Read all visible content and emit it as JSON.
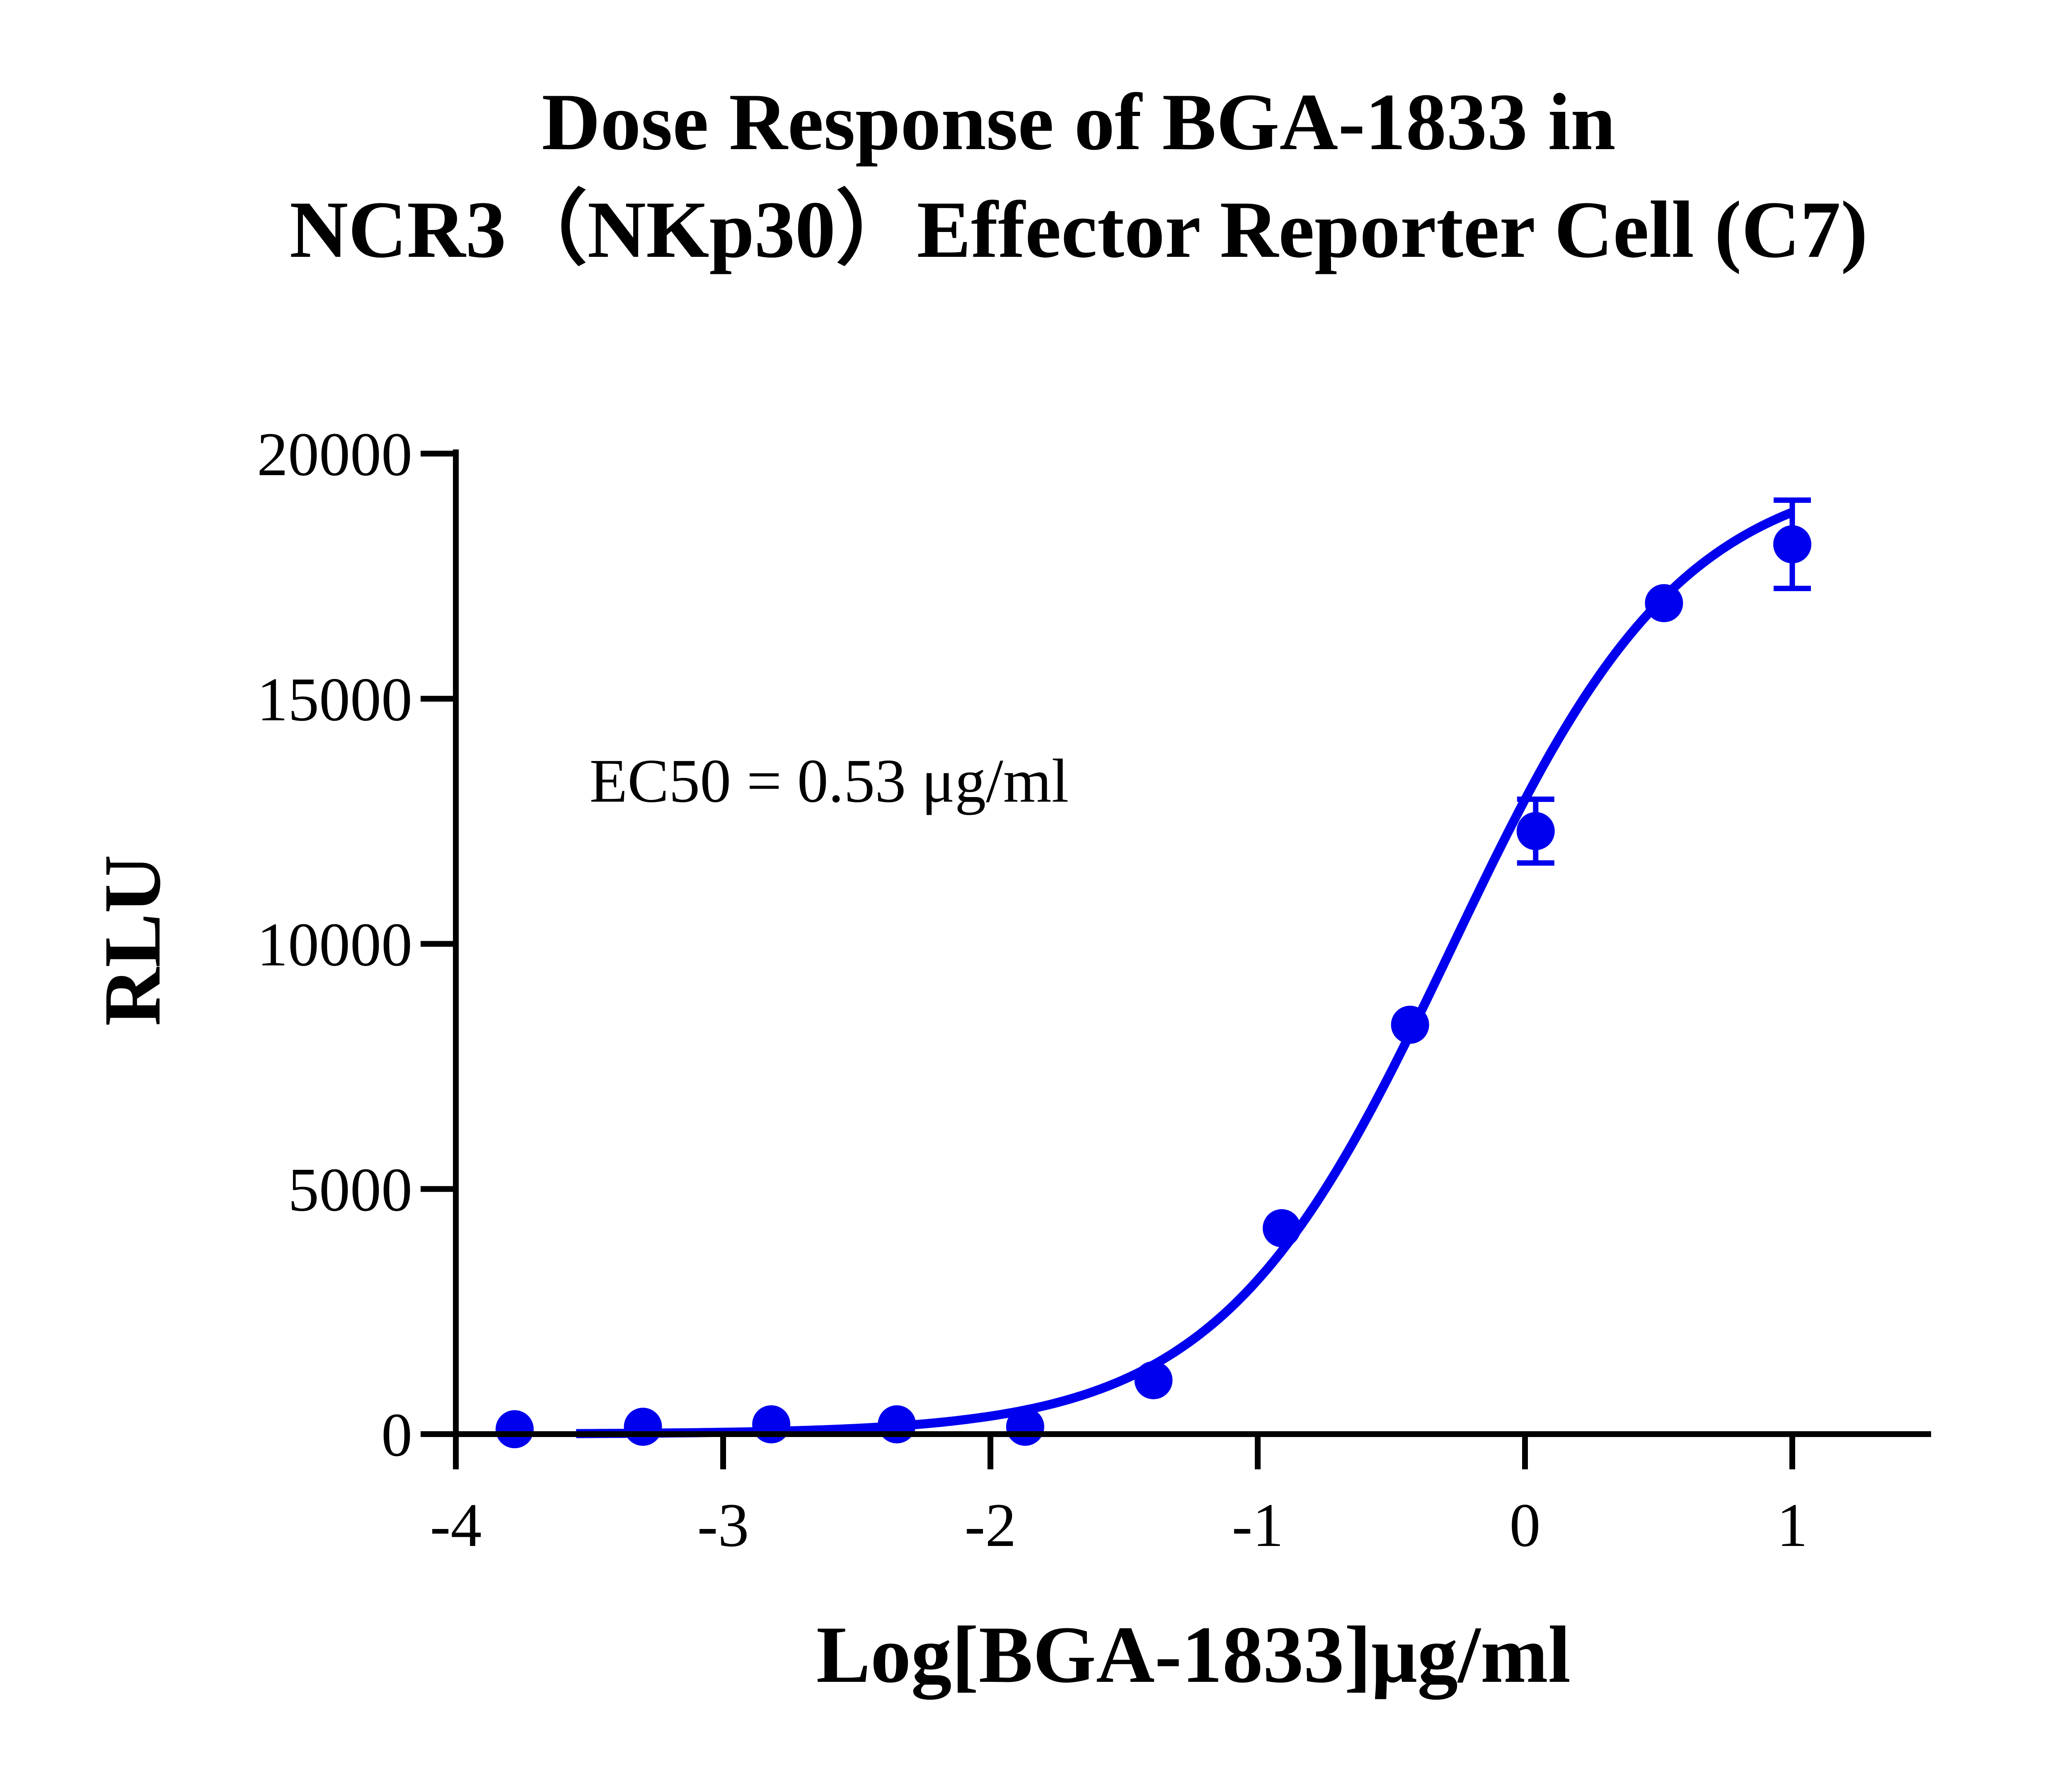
{
  "chart_data": {
    "type": "scatter",
    "title_lines": [
      "Dose Response of BGA-1833 in",
      "NCR3（NKp30）Effector Reporter Cell (C7)"
    ],
    "xlabel": "Log[BGA-1833]μg/ml",
    "ylabel": "RLU",
    "xlim": [
      -4,
      1.5
    ],
    "ylim": [
      0,
      20000
    ],
    "x_ticks": [
      -4,
      -3,
      -2,
      -1,
      0,
      1
    ],
    "x_tick_labels": [
      "-4",
      "-3",
      "-2",
      "-1",
      "0",
      "1"
    ],
    "y_ticks": [
      0,
      5000,
      10000,
      15000,
      20000
    ],
    "y_tick_labels": [
      "0",
      "5000",
      "10000",
      "15000",
      "20000"
    ],
    "grid": false,
    "series": [
      {
        "color": "#0000ee",
        "points": [
          {
            "x": -3.78,
            "y": 100
          },
          {
            "x": -3.3,
            "y": 150
          },
          {
            "x": -2.82,
            "y": 200
          },
          {
            "x": -2.35,
            "y": 200
          },
          {
            "x": -1.87,
            "y": 150
          },
          {
            "x": -1.39,
            "y": 1100
          },
          {
            "x": -0.91,
            "y": 4200
          },
          {
            "x": -0.43,
            "y": 8350
          },
          {
            "x": 0.04,
            "y": 12300,
            "err": 650
          },
          {
            "x": 0.52,
            "y": 16950
          },
          {
            "x": 1.0,
            "y": 18150,
            "err": 900
          }
        ],
        "fit": {
          "model": "4PL",
          "bottom": 0,
          "top": 19800,
          "logEC50": -0.276,
          "hill": 1.0,
          "x_start": -3.55,
          "x_end": 1.0
        }
      }
    ],
    "annotations": [
      {
        "text": "EC50  = 0.53 μg/ml",
        "x": -3.5,
        "y": 12900
      }
    ]
  }
}
